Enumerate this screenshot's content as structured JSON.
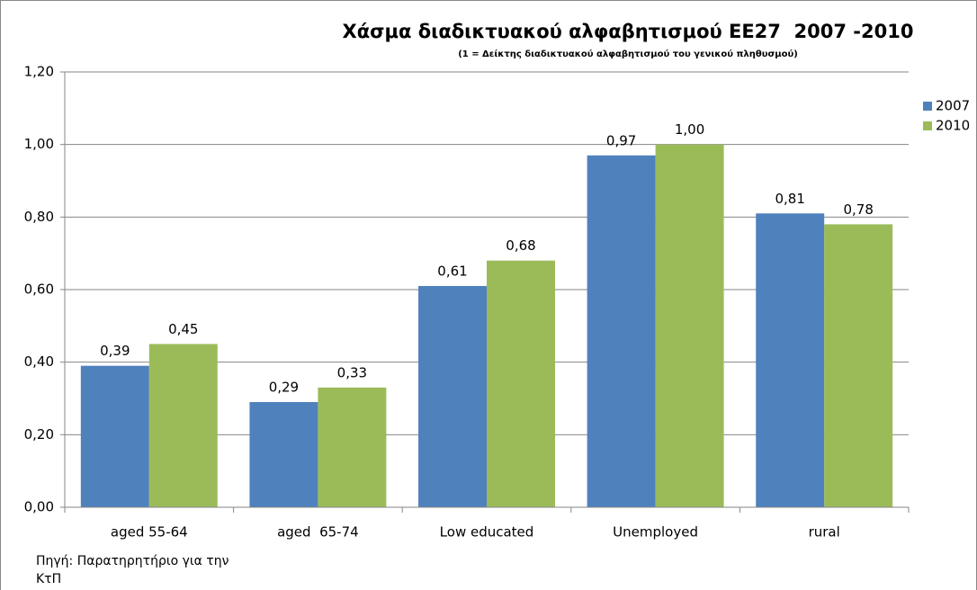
{
  "chart_data": {
    "type": "bar",
    "title": "Χάσμα διαδικτυακού αλφαβητισμού ΕΕ27  2007 -2010",
    "subtitle": "(1 = Δείκτης διαδικτυακού αλφαβητισμού του γενικού πληθυσμού)",
    "note": "Πηγή: Παρατηρητήριο για την ΚτΠ",
    "categories": [
      "aged 55-64",
      "aged  65-74",
      "Low educated",
      "Unemployed",
      "rural"
    ],
    "series": [
      {
        "name": "2007",
        "color": "#4f81bd",
        "values": [
          0.39,
          0.29,
          0.61,
          0.97,
          0.81
        ],
        "value_labels": [
          "0,39",
          "0,29",
          "0,61",
          "0,97",
          "0,81"
        ]
      },
      {
        "name": "2010",
        "color": "#9bbb59",
        "values": [
          0.45,
          0.33,
          0.68,
          1.0,
          0.78
        ],
        "value_labels": [
          "0,45",
          "0,33",
          "0,68",
          "1,00",
          "0,78"
        ]
      }
    ],
    "ylim": [
      0,
      1.2
    ],
    "yticks": [
      {
        "value": 0,
        "label": "0,00"
      },
      {
        "value": 0.2,
        "label": "0,20"
      },
      {
        "value": 0.4,
        "label": "0,40"
      },
      {
        "value": 0.6,
        "label": "0,60"
      },
      {
        "value": 0.8,
        "label": "0,80"
      },
      {
        "value": 1.0,
        "label": "1,00"
      },
      {
        "value": 1.2,
        "label": "1,20"
      }
    ],
    "grid": true,
    "legend": "right"
  }
}
